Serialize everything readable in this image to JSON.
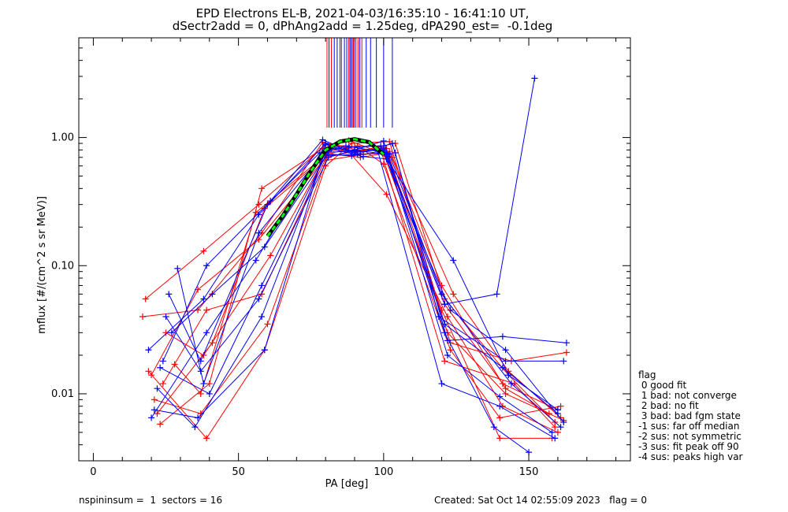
{
  "title_line1": "EPD Electrons EL-B, 2021-04-03/16:35:10 - 16:41:10 UT,",
  "title_line2": "dSectr2add = 0, dPhAng2add = 1.25deg, dPA290_est=  -0.1deg",
  "footer_left": "nspininsum =  1  sectors = 16",
  "footer_right": "Created: Sat Oct 14 02:55:09 2023   flag = 0",
  "legend": {
    "title": "flag",
    "items": [
      " 0 good fit",
      " 1 bad: not converge",
      " 2 bad: no fit",
      " 3 bad: bad fgm state",
      "-1 sus: far off median",
      "-2 sus: not symmetric",
      "-3 sus: fit peak off 90",
      "-4 sus: peaks high var"
    ]
  },
  "colors": {
    "red": "#ff0000",
    "blue": "#0000ff",
    "fit": "#00ff00",
    "fit_outline": "#000000",
    "axis": "#000000"
  },
  "chart_data": {
    "type": "line",
    "xlabel": "PA [deg]",
    "ylabel": "mflux [#/(cm^2 s sr MeV)]",
    "xlim": [
      -5,
      185
    ],
    "ylim": [
      0.003,
      6.0
    ],
    "yscale": "log",
    "xticks": [
      0,
      50,
      100,
      150
    ],
    "xtick_labels": [
      "0",
      "50",
      "100",
      "150"
    ],
    "yticks": [
      0.01,
      0.1,
      1.0
    ],
    "ytick_labels": [
      "0.01",
      "0.10",
      "1.00"
    ],
    "series": [
      {
        "color": "red",
        "x": [
          18,
          38,
          57,
          80,
          90,
          100,
          121,
          141,
          160
        ],
        "y": [
          0.055,
          0.13,
          0.3,
          0.88,
          0.85,
          0.86,
          0.05,
          0.012,
          0.0075
        ]
      },
      {
        "color": "red",
        "x": [
          17,
          36,
          58,
          79,
          91,
          101,
          122,
          142,
          162
        ],
        "y": [
          0.04,
          0.045,
          0.18,
          0.92,
          0.8,
          0.82,
          0.03,
          0.01,
          0.0062
        ]
      },
      {
        "color": "red",
        "x": [
          19,
          39,
          59,
          80,
          89,
          102,
          123,
          144,
          163
        ],
        "y": [
          0.015,
          0.0045,
          0.022,
          0.6,
          0.9,
          0.93,
          0.025,
          0.018,
          0.021
        ]
      },
      {
        "color": "red",
        "x": [
          21,
          37,
          60,
          81,
          92,
          100,
          120,
          140,
          158
        ],
        "y": [
          0.009,
          0.007,
          0.035,
          0.75,
          0.7,
          0.75,
          0.045,
          0.0045,
          0.0045
        ]
      },
      {
        "color": "red",
        "x": [
          23,
          40,
          58,
          79,
          88,
          103,
          124,
          143,
          161
        ],
        "y": [
          0.0058,
          0.012,
          0.4,
          0.82,
          0.95,
          0.7,
          0.06,
          0.015,
          0.0065
        ]
      },
      {
        "color": "red",
        "x": [
          20,
          36,
          57,
          80,
          90,
          99,
          121,
          145,
          159
        ],
        "y": [
          0.014,
          0.065,
          0.16,
          0.7,
          0.78,
          0.8,
          0.018,
          0.012,
          0.0055
        ]
      },
      {
        "color": "red",
        "x": [
          25,
          38,
          61,
          81,
          87,
          101,
          122,
          141,
          160
        ],
        "y": [
          0.03,
          0.02,
          0.12,
          0.78,
          0.82,
          0.36,
          0.04,
          0.008,
          0.005
        ]
      },
      {
        "color": "red",
        "x": [
          22,
          41,
          59,
          78,
          93,
          102,
          120,
          142,
          157
        ],
        "y": [
          0.007,
          0.025,
          0.28,
          0.65,
          0.74,
          0.78,
          0.07,
          0.011,
          0.007
        ]
      },
      {
        "color": "red",
        "x": [
          28,
          37,
          56,
          80,
          91,
          100,
          123,
          140,
          161
        ],
        "y": [
          0.017,
          0.01,
          0.26,
          0.73,
          0.86,
          0.62,
          0.022,
          0.0065,
          0.008
        ]
      },
      {
        "color": "red",
        "x": [
          24,
          39,
          58,
          82,
          89,
          104,
          121,
          143,
          159
        ],
        "y": [
          0.012,
          0.045,
          0.06,
          0.85,
          0.76,
          0.9,
          0.055,
          0.014,
          0.006
        ]
      },
      {
        "color": "blue",
        "x": [
          19,
          38,
          57,
          80,
          90,
          100,
          121,
          141,
          160
        ],
        "y": [
          0.022,
          0.055,
          0.25,
          0.9,
          0.78,
          0.8,
          0.035,
          0.016,
          0.007
        ]
      },
      {
        "color": "blue",
        "x": [
          21,
          36,
          59,
          79,
          92,
          101,
          122,
          140,
          158
        ],
        "y": [
          0.0075,
          0.0065,
          0.022,
          0.72,
          0.74,
          0.76,
          0.02,
          0.0095,
          0.005
        ]
      },
      {
        "color": "blue",
        "x": [
          23,
          40,
          58,
          81,
          88,
          99,
          123,
          142,
          162
        ],
        "y": [
          0.016,
          0.01,
          0.07,
          0.8,
          0.84,
          0.86,
          0.045,
          0.022,
          0.006
        ]
      },
      {
        "color": "blue",
        "x": [
          26,
          37,
          60,
          78,
          91,
          102,
          120,
          144,
          161
        ],
        "y": [
          0.06,
          0.018,
          0.3,
          0.76,
          0.79,
          0.74,
          0.06,
          0.012,
          0.0055
        ]
      },
      {
        "color": "blue",
        "x": [
          20,
          39,
          56,
          80,
          90,
          100,
          121,
          139,
          152
        ],
        "y": [
          0.0065,
          0.03,
          0.11,
          0.88,
          0.76,
          0.83,
          0.05,
          0.06,
          2.9
        ]
      },
      {
        "color": "blue",
        "x": [
          29,
          38,
          57,
          79,
          89,
          103,
          122,
          141,
          163
        ],
        "y": [
          0.095,
          0.012,
          0.18,
          0.74,
          0.72,
          0.9,
          0.026,
          0.028,
          0.025
        ]
      },
      {
        "color": "blue",
        "x": [
          27,
          41,
          59,
          82,
          93,
          101,
          124,
          143,
          160
        ],
        "y": [
          0.03,
          0.06,
          0.14,
          0.82,
          0.71,
          0.68,
          0.11,
          0.014,
          0.0075
        ]
      },
      {
        "color": "blue",
        "x": [
          22,
          35,
          58,
          80,
          87,
          98,
          120,
          140,
          159
        ],
        "y": [
          0.011,
          0.0055,
          0.04,
          0.78,
          0.86,
          0.78,
          0.012,
          0.008,
          0.0045
        ]
      },
      {
        "color": "blue",
        "x": [
          24,
          39,
          61,
          79,
          91,
          104,
          119,
          142,
          162
        ],
        "y": [
          0.018,
          0.1,
          0.32,
          0.96,
          0.74,
          0.76,
          0.04,
          0.018,
          0.018
        ]
      },
      {
        "color": "blue",
        "x": [
          25,
          37,
          57,
          81,
          90,
          100,
          121,
          138,
          150
        ],
        "y": [
          0.04,
          0.015,
          0.055,
          0.7,
          0.8,
          0.94,
          0.03,
          0.0055,
          0.0035
        ]
      }
    ],
    "fit": {
      "x": [
        60,
        65,
        70,
        75,
        80,
        85,
        90,
        95,
        100
      ],
      "y": [
        0.17,
        0.24,
        0.36,
        0.55,
        0.8,
        0.93,
        0.97,
        0.92,
        0.74
      ]
    },
    "vertical_markers": [
      {
        "color": "red",
        "x": 80.5
      },
      {
        "color": "red",
        "x": 82.0
      },
      {
        "color": "red",
        "x": 85.5
      },
      {
        "color": "red",
        "x": 88.0
      },
      {
        "color": "red",
        "x": 88.8
      },
      {
        "color": "red",
        "x": 89.6
      },
      {
        "color": "red",
        "x": 90.5
      },
      {
        "color": "red",
        "x": 91.2
      },
      {
        "color": "red",
        "x": 92.5
      },
      {
        "color": "blue",
        "x": 81.2
      },
      {
        "color": "blue",
        "x": 83.0
      },
      {
        "color": "blue",
        "x": 84.0
      },
      {
        "color": "blue",
        "x": 85.0
      },
      {
        "color": "blue",
        "x": 86.5
      },
      {
        "color": "blue",
        "x": 87.3
      },
      {
        "color": "blue",
        "x": 88.4
      },
      {
        "color": "blue",
        "x": 89.2
      },
      {
        "color": "blue",
        "x": 90.0
      },
      {
        "color": "blue",
        "x": 91.8
      },
      {
        "color": "blue",
        "x": 94.0
      },
      {
        "color": "blue",
        "x": 95.5
      },
      {
        "color": "blue",
        "x": 97.5
      },
      {
        "color": "blue",
        "x": 100.0
      },
      {
        "color": "blue",
        "x": 103.0
      }
    ]
  }
}
